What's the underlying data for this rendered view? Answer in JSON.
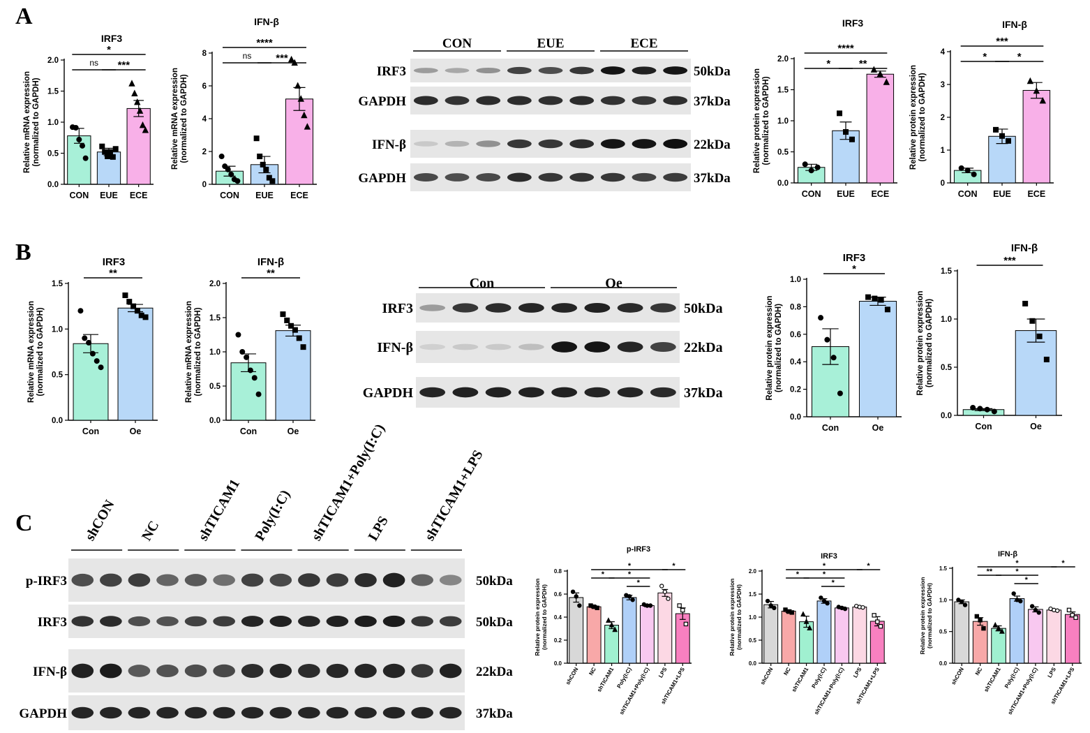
{
  "panels": {
    "a": "A",
    "b": "B",
    "c": "C"
  },
  "style": {
    "green": "#A8F0D8",
    "blue": "#B8D8F8",
    "pink": "#F8B0E8",
    "grey": "#D8D8D8",
    "salmon": "#F8A8A8",
    "teal": "#A0F0D0",
    "lightblue": "#B0D0F8",
    "lightpink": "#F8C8F0",
    "palepink": "#FCD8E4",
    "hotpink": "#F880C0",
    "sig": "#000000"
  },
  "chart_data": [
    {
      "id": "A1",
      "type": "bar",
      "title": "IRF3",
      "ylabel": "Relative mRNA expression\n(normalized to GAPDH)",
      "categories": [
        "CON",
        "EUE",
        "ECE"
      ],
      "values": [
        0.78,
        0.52,
        1.22
      ],
      "errors": [
        0.12,
        0.06,
        0.13
      ],
      "points": [
        [
          0.92,
          0.91,
          0.72,
          0.62,
          0.42
        ],
        [
          0.61,
          0.52,
          0.45,
          0.52,
          0.44,
          0.57
        ],
        [
          1.62,
          1.46,
          1.32,
          1.18,
          0.95,
          0.87
        ]
      ],
      "markers": [
        "circle",
        "square",
        "triangle"
      ],
      "colors": [
        "#A8F0D8",
        "#B8D8F8",
        "#F8B0E8"
      ],
      "ylim": [
        0,
        2.0
      ],
      "yticks": [
        0,
        0.5,
        1.0,
        1.5,
        2.0
      ],
      "ytick_labels": [
        "0.0",
        "0.5",
        "1.0",
        "1.5",
        "2.0"
      ],
      "significance": [
        {
          "from": 0,
          "to": 2,
          "label": "*"
        },
        {
          "from": 1,
          "to": 2,
          "label": "***"
        },
        {
          "from": 0,
          "to": 1,
          "label": "ns"
        }
      ]
    },
    {
      "id": "A2",
      "type": "bar",
      "title": "IFN-β",
      "ylabel": "Relative mRNA expression\n(normalized to GAPDH)",
      "categories": [
        "CON",
        "EUE",
        "ECE"
      ],
      "values": [
        0.8,
        1.2,
        5.2
      ],
      "errors": [
        0.3,
        0.5,
        0.7
      ],
      "points": [
        [
          1.7,
          1.1,
          0.9,
          0.6,
          0.3,
          0.2
        ],
        [
          2.8,
          1.7,
          1.2,
          0.9,
          0.4,
          0.2
        ],
        [
          7.6,
          7.4,
          6.0,
          5.2,
          4.2,
          3.5
        ]
      ],
      "markers": [
        "circle",
        "square",
        "triangle"
      ],
      "colors": [
        "#A8F0D8",
        "#B8D8F8",
        "#F8B0E8"
      ],
      "ylim": [
        0,
        8
      ],
      "yticks": [
        0,
        2,
        4,
        6,
        8
      ],
      "ytick_labels": [
        "0",
        "2",
        "4",
        "6",
        "8"
      ],
      "significance": [
        {
          "from": 0,
          "to": 2,
          "label": "****"
        },
        {
          "from": 1,
          "to": 2,
          "label": "***"
        },
        {
          "from": 0,
          "to": 1,
          "label": "ns"
        }
      ]
    },
    {
      "id": "A3",
      "type": "bar",
      "title": "IRF3",
      "ylabel": "Relative protein expression\n(normalized to GAPDH)",
      "categories": [
        "CON",
        "EUE",
        "ECE"
      ],
      "values": [
        0.25,
        0.84,
        1.75
      ],
      "errors": [
        0.05,
        0.14,
        0.05
      ],
      "points": [
        [
          0.3,
          0.2,
          0.25
        ],
        [
          1.12,
          0.82,
          0.7
        ],
        [
          1.82,
          1.75,
          1.62
        ]
      ],
      "markers": [
        "circle",
        "square",
        "triangle"
      ],
      "colors": [
        "#A8F0D8",
        "#B8D8F8",
        "#F8B0E8"
      ],
      "ylim": [
        0,
        2.0
      ],
      "yticks": [
        0,
        0.5,
        1.0,
        1.5,
        2.0
      ],
      "ytick_labels": [
        "0.0",
        "0.5",
        "1.0",
        "1.5",
        "2.0"
      ],
      "significance": [
        {
          "from": 0,
          "to": 2,
          "label": "****"
        },
        {
          "from": 1,
          "to": 2,
          "label": "**"
        },
        {
          "from": 0,
          "to": 1,
          "label": "*"
        }
      ]
    },
    {
      "id": "A4",
      "type": "bar",
      "title": "IFN-β",
      "ylabel": "Relative protein expression\n(normalized to GAPDH)",
      "categories": [
        "CON",
        "EUE",
        "ECE"
      ],
      "values": [
        0.38,
        1.42,
        2.82
      ],
      "errors": [
        0.07,
        0.22,
        0.24
      ],
      "points": [
        [
          0.45,
          0.38,
          0.26
        ],
        [
          1.62,
          1.43,
          1.28
        ],
        [
          3.1,
          2.8,
          2.5
        ]
      ],
      "markers": [
        "circle",
        "square",
        "triangle"
      ],
      "colors": [
        "#A8F0D8",
        "#B8D8F8",
        "#F8B0E8"
      ],
      "ylim": [
        0,
        4
      ],
      "yticks": [
        0,
        1,
        2,
        3,
        4
      ],
      "ytick_labels": [
        "0",
        "1",
        "2",
        "3",
        "4"
      ],
      "significance": [
        {
          "from": 0,
          "to": 2,
          "label": "***"
        },
        {
          "from": 1,
          "to": 2,
          "label": "*"
        },
        {
          "from": 0,
          "to": 1,
          "label": "*"
        }
      ]
    },
    {
      "id": "B1",
      "type": "bar",
      "title": "IRF3",
      "ylabel": "Relative mRNA expression\n(normalized to GAPDH)",
      "categories": [
        "Con",
        "Oe"
      ],
      "values": [
        0.84,
        1.23
      ],
      "errors": [
        0.1,
        0.04
      ],
      "points": [
        [
          1.2,
          0.9,
          0.85,
          0.73,
          0.65,
          0.58
        ],
        [
          1.37,
          1.3,
          1.25,
          1.2,
          1.15,
          1.13
        ]
      ],
      "markers": [
        "circle",
        "square"
      ],
      "colors": [
        "#A8F0D8",
        "#B8D8F8"
      ],
      "ylim": [
        0,
        1.5
      ],
      "yticks": [
        0,
        0.5,
        1.0,
        1.5
      ],
      "ytick_labels": [
        "0.0",
        "0.5",
        "1.0",
        "1.5"
      ],
      "significance": [
        {
          "from": 0,
          "to": 1,
          "label": "**"
        }
      ]
    },
    {
      "id": "B2",
      "type": "bar",
      "title": "IFN-β",
      "ylabel": "Relative mRNA expression\n(normalized to GAPDH)",
      "categories": [
        "Con",
        "Oe"
      ],
      "values": [
        0.84,
        1.31
      ],
      "errors": [
        0.13,
        0.08
      ],
      "points": [
        [
          1.25,
          1.0,
          0.92,
          0.73,
          0.62,
          0.38
        ],
        [
          1.55,
          1.46,
          1.38,
          1.32,
          1.2,
          1.07
        ]
      ],
      "markers": [
        "circle",
        "square"
      ],
      "colors": [
        "#A8F0D8",
        "#B8D8F8"
      ],
      "ylim": [
        0,
        2.0
      ],
      "yticks": [
        0,
        0.5,
        1.0,
        1.5,
        2.0
      ],
      "ytick_labels": [
        "0.0",
        "0.5",
        "1.0",
        "1.5",
        "2.0"
      ],
      "significance": [
        {
          "from": 0,
          "to": 1,
          "label": "**"
        }
      ]
    },
    {
      "id": "B3",
      "type": "bar",
      "title": "IRF3",
      "ylabel": "Relative protein expression\n(normalized to GAPDH)",
      "categories": [
        "Con",
        "Oe"
      ],
      "values": [
        0.51,
        0.84
      ],
      "errors": [
        0.13,
        0.03
      ],
      "points": [
        [
          0.72,
          0.56,
          0.43,
          0.17
        ],
        [
          0.87,
          0.86,
          0.85,
          0.78
        ]
      ],
      "markers": [
        "circle",
        "square"
      ],
      "colors": [
        "#A8F0D8",
        "#B8D8F8"
      ],
      "ylim": [
        0,
        1.0
      ],
      "yticks": [
        0,
        0.2,
        0.4,
        0.6,
        0.8,
        1.0
      ],
      "ytick_labels": [
        "0.0",
        "0.2",
        "0.4",
        "0.6",
        "0.8",
        "1.0"
      ],
      "significance": [
        {
          "from": 0,
          "to": 1,
          "label": "*"
        }
      ]
    },
    {
      "id": "B4",
      "type": "bar",
      "title": "IFN-β",
      "ylabel": "Relative protein expression\n(normalized to GAPDH)",
      "categories": [
        "Con",
        "Oe"
      ],
      "values": [
        0.06,
        0.88
      ],
      "errors": [
        0.01,
        0.12
      ],
      "points": [
        [
          0.08,
          0.07,
          0.06,
          0.04
        ],
        [
          1.16,
          0.98,
          0.82,
          0.58
        ]
      ],
      "markers": [
        "circle",
        "square"
      ],
      "colors": [
        "#A8F0D8",
        "#B8D8F8"
      ],
      "ylim": [
        0,
        1.5
      ],
      "yticks": [
        0,
        0.5,
        1.0,
        1.5
      ],
      "ytick_labels": [
        "0.0",
        "0.5",
        "1.0",
        "1.5"
      ],
      "significance": [
        {
          "from": 0,
          "to": 1,
          "label": "***"
        }
      ]
    },
    {
      "id": "C1",
      "type": "bar",
      "title": "p-IRF3",
      "ylabel": "Relative protein expression\n(normalized to GAPDH)",
      "categories": [
        "shCON",
        "NC",
        "shTICAM1",
        "Poly(I:C)",
        "shTICAM1+Poly(I:C)",
        "LPS",
        "shTICAM1+LPS"
      ],
      "values": [
        0.57,
        0.49,
        0.33,
        0.57,
        0.5,
        0.61,
        0.43
      ],
      "errors": [
        0.04,
        0.01,
        0.03,
        0.02,
        0.01,
        0.03,
        0.05
      ],
      "points": [
        [
          0.62,
          0.58,
          0.5
        ],
        [
          0.5,
          0.49,
          0.48
        ],
        [
          0.37,
          0.33,
          0.29
        ],
        [
          0.59,
          0.58,
          0.55
        ],
        [
          0.51,
          0.5,
          0.5
        ],
        [
          0.67,
          0.62,
          0.56
        ],
        [
          0.5,
          0.46,
          0.34
        ]
      ],
      "markers": [
        "circle",
        "square",
        "triangle",
        "circle",
        "circle",
        "circle-open",
        "square-open"
      ],
      "colors": [
        "#D8D8D8",
        "#F8A8A8",
        "#A0F0D0",
        "#B0D0F8",
        "#F8C8F0",
        "#FCD8E4",
        "#F880C0"
      ],
      "ylim": [
        0,
        0.8
      ],
      "yticks": [
        0,
        0.2,
        0.4,
        0.6,
        0.8
      ],
      "ytick_labels": [
        "0.0",
        "0.2",
        "0.4",
        "0.6",
        "0.8"
      ],
      "significance": [
        {
          "from": 1,
          "to": 5,
          "label": "*"
        },
        {
          "from": 2,
          "to": 4,
          "label": "*"
        },
        {
          "from": 1,
          "to": 2,
          "label": "*"
        },
        {
          "from": 3,
          "to": 4,
          "label": "*"
        },
        {
          "from": 5,
          "to": 6,
          "label": "*"
        }
      ]
    },
    {
      "id": "C2",
      "type": "bar",
      "title": "IRF3",
      "ylabel": "Relative protein expression\n(normalized to GAPDH)",
      "categories": [
        "shCON",
        "NC",
        "shTICAM1",
        "Poly(I:C)",
        "shTICAM1+Poly(I:C)",
        "LPS",
        "shTICAM1+LPS"
      ],
      "values": [
        1.27,
        1.13,
        0.9,
        1.35,
        1.2,
        1.22,
        0.91
      ],
      "errors": [
        0.07,
        0.03,
        0.12,
        0.05,
        0.02,
        0.02,
        0.1
      ],
      "points": [
        [
          1.35,
          1.25,
          1.2
        ],
        [
          1.16,
          1.12,
          1.1
        ],
        [
          1.06,
          0.9,
          0.76
        ],
        [
          1.42,
          1.35,
          1.3
        ],
        [
          1.22,
          1.2,
          1.18
        ],
        [
          1.24,
          1.22,
          1.21
        ],
        [
          1.04,
          0.9,
          0.8
        ]
      ],
      "markers": [
        "circle",
        "square",
        "triangle",
        "circle",
        "circle",
        "circle-open",
        "square-open"
      ],
      "colors": [
        "#D8D8D8",
        "#F8A8A8",
        "#A0F0D0",
        "#B0D0F8",
        "#F8C8F0",
        "#FCD8E4",
        "#F880C0"
      ],
      "ylim": [
        0,
        2.0
      ],
      "yticks": [
        0,
        0.5,
        1.0,
        1.5,
        2.0
      ],
      "ytick_labels": [
        "0.0",
        "0.5",
        "1.0",
        "1.5",
        "2.0"
      ],
      "significance": [
        {
          "from": 1,
          "to": 5,
          "label": "*"
        },
        {
          "from": 2,
          "to": 4,
          "label": "*"
        },
        {
          "from": 1,
          "to": 2,
          "label": "*"
        },
        {
          "from": 3,
          "to": 4,
          "label": "*"
        },
        {
          "from": 5,
          "to": 6,
          "label": "*"
        }
      ]
    },
    {
      "id": "C3",
      "type": "bar",
      "title": "IFN-β",
      "ylabel": "Relative protein expression\n(normalized to GAPDH)",
      "categories": [
        "shCON",
        "NC",
        "shTICAM1",
        "Poly(I:C)",
        "shTICAM1+Poly(I:C)",
        "LPS",
        "shTICAM1+LPS"
      ],
      "values": [
        0.97,
        0.66,
        0.55,
        1.02,
        0.85,
        0.84,
        0.77
      ],
      "errors": [
        0.03,
        0.06,
        0.04,
        0.04,
        0.04,
        0.01,
        0.04
      ],
      "points": [
        [
          1.0,
          0.97,
          0.92
        ],
        [
          0.74,
          0.68,
          0.55
        ],
        [
          0.6,
          0.55,
          0.5
        ],
        [
          1.1,
          1.0,
          0.98
        ],
        [
          0.9,
          0.84,
          0.8
        ],
        [
          0.86,
          0.84,
          0.83
        ],
        [
          0.84,
          0.76,
          0.72
        ]
      ],
      "markers": [
        "circle",
        "square",
        "triangle",
        "circle",
        "circle",
        "circle-open",
        "square-open"
      ],
      "colors": [
        "#D8D8D8",
        "#F8A8A8",
        "#A0F0D0",
        "#B0D0F8",
        "#F8C8F0",
        "#FCD8E4",
        "#F880C0"
      ],
      "ylim": [
        0,
        1.5
      ],
      "yticks": [
        0,
        0.5,
        1.0,
        1.5
      ],
      "ytick_labels": [
        "0.0",
        "0.5",
        "1.0",
        "1.5"
      ],
      "significance": [
        {
          "from": 1,
          "to": 5,
          "label": "*"
        },
        {
          "from": 2,
          "to": 4,
          "label": "*"
        },
        {
          "from": 1,
          "to": 2,
          "label": "**"
        },
        {
          "from": 3,
          "to": 4,
          "label": "*"
        },
        {
          "from": 5,
          "to": 6,
          "label": "*"
        }
      ]
    }
  ],
  "blots": [
    {
      "id": "WA",
      "groups": [
        "CON",
        "EUE",
        "ECE"
      ],
      "rows": [
        {
          "label": "IRF3",
          "kda": "50kDa",
          "intensity": [
            0.35,
            0.3,
            0.4,
            0.75,
            0.7,
            0.8,
            0.95,
            0.9,
            0.95
          ]
        },
        {
          "label": "GAPDH",
          "kda": "37kDa",
          "intensity": [
            0.85,
            0.82,
            0.85,
            0.85,
            0.83,
            0.85,
            0.82,
            0.8,
            0.84
          ]
        },
        {
          "label": "IFN-β",
          "kda": "22kDa",
          "intensity": [
            0.15,
            0.25,
            0.4,
            0.8,
            0.8,
            0.85,
            0.95,
            0.95,
            0.98
          ]
        },
        {
          "label": "GAPDH",
          "kda": "37kDa",
          "intensity": [
            0.72,
            0.7,
            0.72,
            0.85,
            0.8,
            0.82,
            0.8,
            0.75,
            0.78
          ]
        }
      ]
    },
    {
      "id": "WB",
      "groups": [
        "Con",
        "Oe"
      ],
      "rows": [
        {
          "label": "IRF3",
          "kda": "50kDa",
          "intensity": [
            0.35,
            0.8,
            0.85,
            0.88,
            0.88,
            0.9,
            0.86,
            0.8
          ]
        },
        {
          "label": "IFN-β",
          "kda": "22kDa",
          "intensity": [
            0.12,
            0.15,
            0.15,
            0.2,
            0.95,
            0.95,
            0.88,
            0.75
          ]
        },
        {
          "label": "GAPDH",
          "kda": "37kDa",
          "intensity": [
            0.88,
            0.9,
            0.9,
            0.9,
            0.9,
            0.88,
            0.88,
            0.86
          ]
        }
      ]
    },
    {
      "id": "WC",
      "groups": [
        "shCON",
        "NC",
        "shTICAM1",
        "Poly(I:C)",
        "shTICAM1+Poly(I:C)",
        "LPS",
        "shTICAM1+LPS"
      ],
      "rows": [
        {
          "label": "p-IRF3",
          "kda": "50kDa",
          "intensity": [
            0.7,
            0.75,
            0.78,
            0.6,
            0.65,
            0.55,
            0.75,
            0.72,
            0.8,
            0.78,
            0.85,
            0.9,
            0.6,
            0.45
          ]
        },
        {
          "label": "IRF3",
          "kda": "50kDa",
          "intensity": [
            0.82,
            0.85,
            0.7,
            0.68,
            0.75,
            0.78,
            0.88,
            0.9,
            0.88,
            0.9,
            0.92,
            0.92,
            0.8,
            0.78
          ]
        },
        {
          "label": "IFN-β",
          "kda": "22kDa",
          "intensity": [
            0.9,
            0.92,
            0.65,
            0.68,
            0.7,
            0.72,
            0.85,
            0.88,
            0.85,
            0.87,
            0.88,
            0.88,
            0.8,
            0.9
          ]
        },
        {
          "label": "GAPDH",
          "kda": "37kDa",
          "intensity": [
            0.88,
            0.88,
            0.88,
            0.88,
            0.88,
            0.88,
            0.88,
            0.88,
            0.88,
            0.88,
            0.88,
            0.88,
            0.88,
            0.88
          ]
        }
      ]
    }
  ]
}
